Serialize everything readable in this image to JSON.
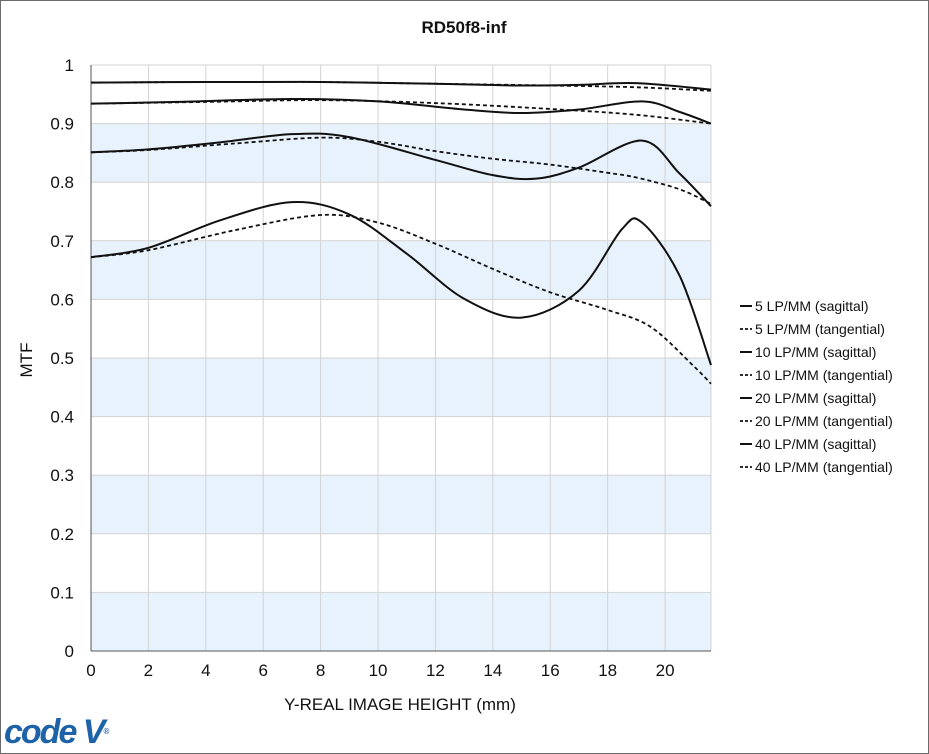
{
  "chart_data": {
    "type": "line",
    "title": "RD50f8-inf",
    "xlabel": "Y-REAL IMAGE HEIGHT (mm)",
    "ylabel": "MTF",
    "xlim": [
      0,
      21.6
    ],
    "ylim": [
      0,
      1
    ],
    "x_ticks": [
      0,
      2,
      4,
      6,
      8,
      10,
      12,
      14,
      16,
      18,
      20
    ],
    "x_tick_labels": [
      "0",
      "2",
      "4",
      "6",
      "8",
      "10",
      "12",
      "14",
      "16",
      "18",
      "20"
    ],
    "y_ticks": [
      0,
      0.1,
      0.2,
      0.3,
      0.4,
      0.5,
      0.6,
      0.7,
      0.8,
      0.9,
      1
    ],
    "y_tick_labels": [
      "0",
      "0.1",
      "0.2",
      "0.3",
      "0.4",
      "0.5",
      "0.6",
      "0.7",
      "0.8",
      "0.9",
      "1"
    ],
    "grid": true,
    "band_color": "#e8f2fc",
    "line_color": "#111111",
    "legend_position": "right",
    "series": [
      {
        "name": "5 LP/MM (sagittal)",
        "style": "solid",
        "x": [
          0,
          4,
          8,
          12,
          15,
          17,
          19,
          21.6
        ],
        "y": [
          0.97,
          0.971,
          0.971,
          0.968,
          0.965,
          0.966,
          0.969,
          0.958
        ]
      },
      {
        "name": "5 LP/MM (tangential)",
        "style": "dashed",
        "x": [
          0,
          4,
          8,
          12,
          16,
          19,
          21.6
        ],
        "y": [
          0.97,
          0.971,
          0.971,
          0.968,
          0.965,
          0.962,
          0.956
        ]
      },
      {
        "name": "10 LP/MM (sagittal)",
        "style": "solid",
        "x": [
          0,
          3,
          7,
          10,
          13,
          15,
          17,
          19.2,
          20.5,
          21.6
        ],
        "y": [
          0.934,
          0.937,
          0.942,
          0.938,
          0.924,
          0.918,
          0.924,
          0.938,
          0.92,
          0.9
        ]
      },
      {
        "name": "10 LP/MM (tangential)",
        "style": "dashed",
        "x": [
          0,
          4,
          8,
          12,
          16,
          19,
          21.6
        ],
        "y": [
          0.934,
          0.937,
          0.94,
          0.935,
          0.925,
          0.915,
          0.9
        ]
      },
      {
        "name": "20 LP/MM (sagittal)",
        "style": "solid",
        "x": [
          0,
          2,
          4.5,
          7,
          9,
          12,
          14,
          15.5,
          17,
          19.2,
          20.5,
          21.6
        ],
        "y": [
          0.851,
          0.856,
          0.868,
          0.882,
          0.877,
          0.838,
          0.812,
          0.806,
          0.825,
          0.871,
          0.815,
          0.759
        ]
      },
      {
        "name": "20 LP/MM (tangential)",
        "style": "dashed",
        "x": [
          0,
          2,
          5,
          8,
          10,
          12,
          14,
          16,
          18,
          19,
          20.5,
          21.6
        ],
        "y": [
          0.851,
          0.855,
          0.866,
          0.876,
          0.869,
          0.853,
          0.84,
          0.83,
          0.816,
          0.808,
          0.788,
          0.763
        ]
      },
      {
        "name": "40 LP/MM (sagittal)",
        "style": "solid",
        "x": [
          0,
          2,
          4.5,
          7,
          9,
          11,
          13,
          15,
          17,
          18.5,
          19.2,
          20.5,
          21.6
        ],
        "y": [
          0.672,
          0.688,
          0.735,
          0.766,
          0.745,
          0.678,
          0.601,
          0.569,
          0.615,
          0.72,
          0.731,
          0.641,
          0.488
        ]
      },
      {
        "name": "40 LP/MM (tangential)",
        "style": "dashed",
        "x": [
          0,
          2,
          5,
          8,
          10,
          12,
          14,
          16,
          18,
          19.5,
          21,
          21.6
        ],
        "y": [
          0.672,
          0.684,
          0.718,
          0.744,
          0.731,
          0.695,
          0.652,
          0.612,
          0.582,
          0.553,
          0.486,
          0.456
        ]
      }
    ]
  },
  "branding": {
    "logo_text": "code V",
    "logo_mark": "®"
  }
}
